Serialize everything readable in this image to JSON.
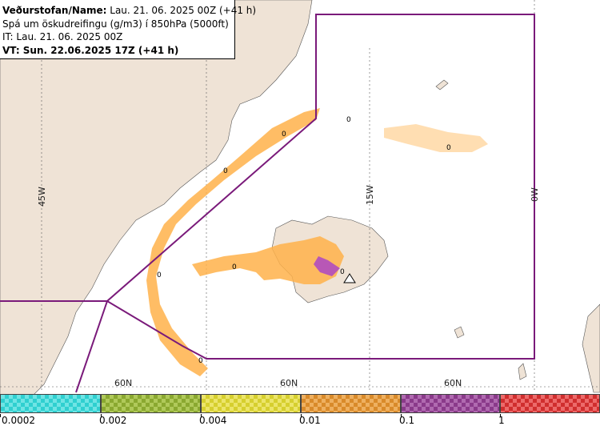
{
  "header": {
    "line1_bold": "Veðurstofan/Name:",
    "line1_rest": " Lau. 21. 06. 2025 00Z (+41 h)",
    "line2": "Spá um öskudreifingu (g/m3) í 850hPa (5000ft)",
    "line3": "IT: Lau. 21. 06. 2025 00Z",
    "line4": "VT: Sun. 22.06.2025 17Z (+41 h)"
  },
  "grid": {
    "lon_labels": [
      "45W",
      "15W",
      "0W"
    ],
    "lat_labels": [
      "60N",
      "60N",
      "60N"
    ]
  },
  "contour_labels": [
    "0",
    "0",
    "0",
    "0",
    "0",
    "0",
    "0",
    "0"
  ],
  "legend": {
    "labels": [
      "0.0002",
      "0.002",
      "0.004",
      "0.01",
      "0.1",
      "1"
    ],
    "colors": [
      "#2fd0d0",
      "#8aa830",
      "#d6cf2e",
      "#d98a2a",
      "#8a3a8a",
      "#d02e2e"
    ]
  },
  "colors": {
    "land": "#efe3d6",
    "sea": "#ffffff",
    "boundary": "#7a1a7a",
    "ash_low": "#ffb24a",
    "ash_high": "#b04cc0"
  }
}
